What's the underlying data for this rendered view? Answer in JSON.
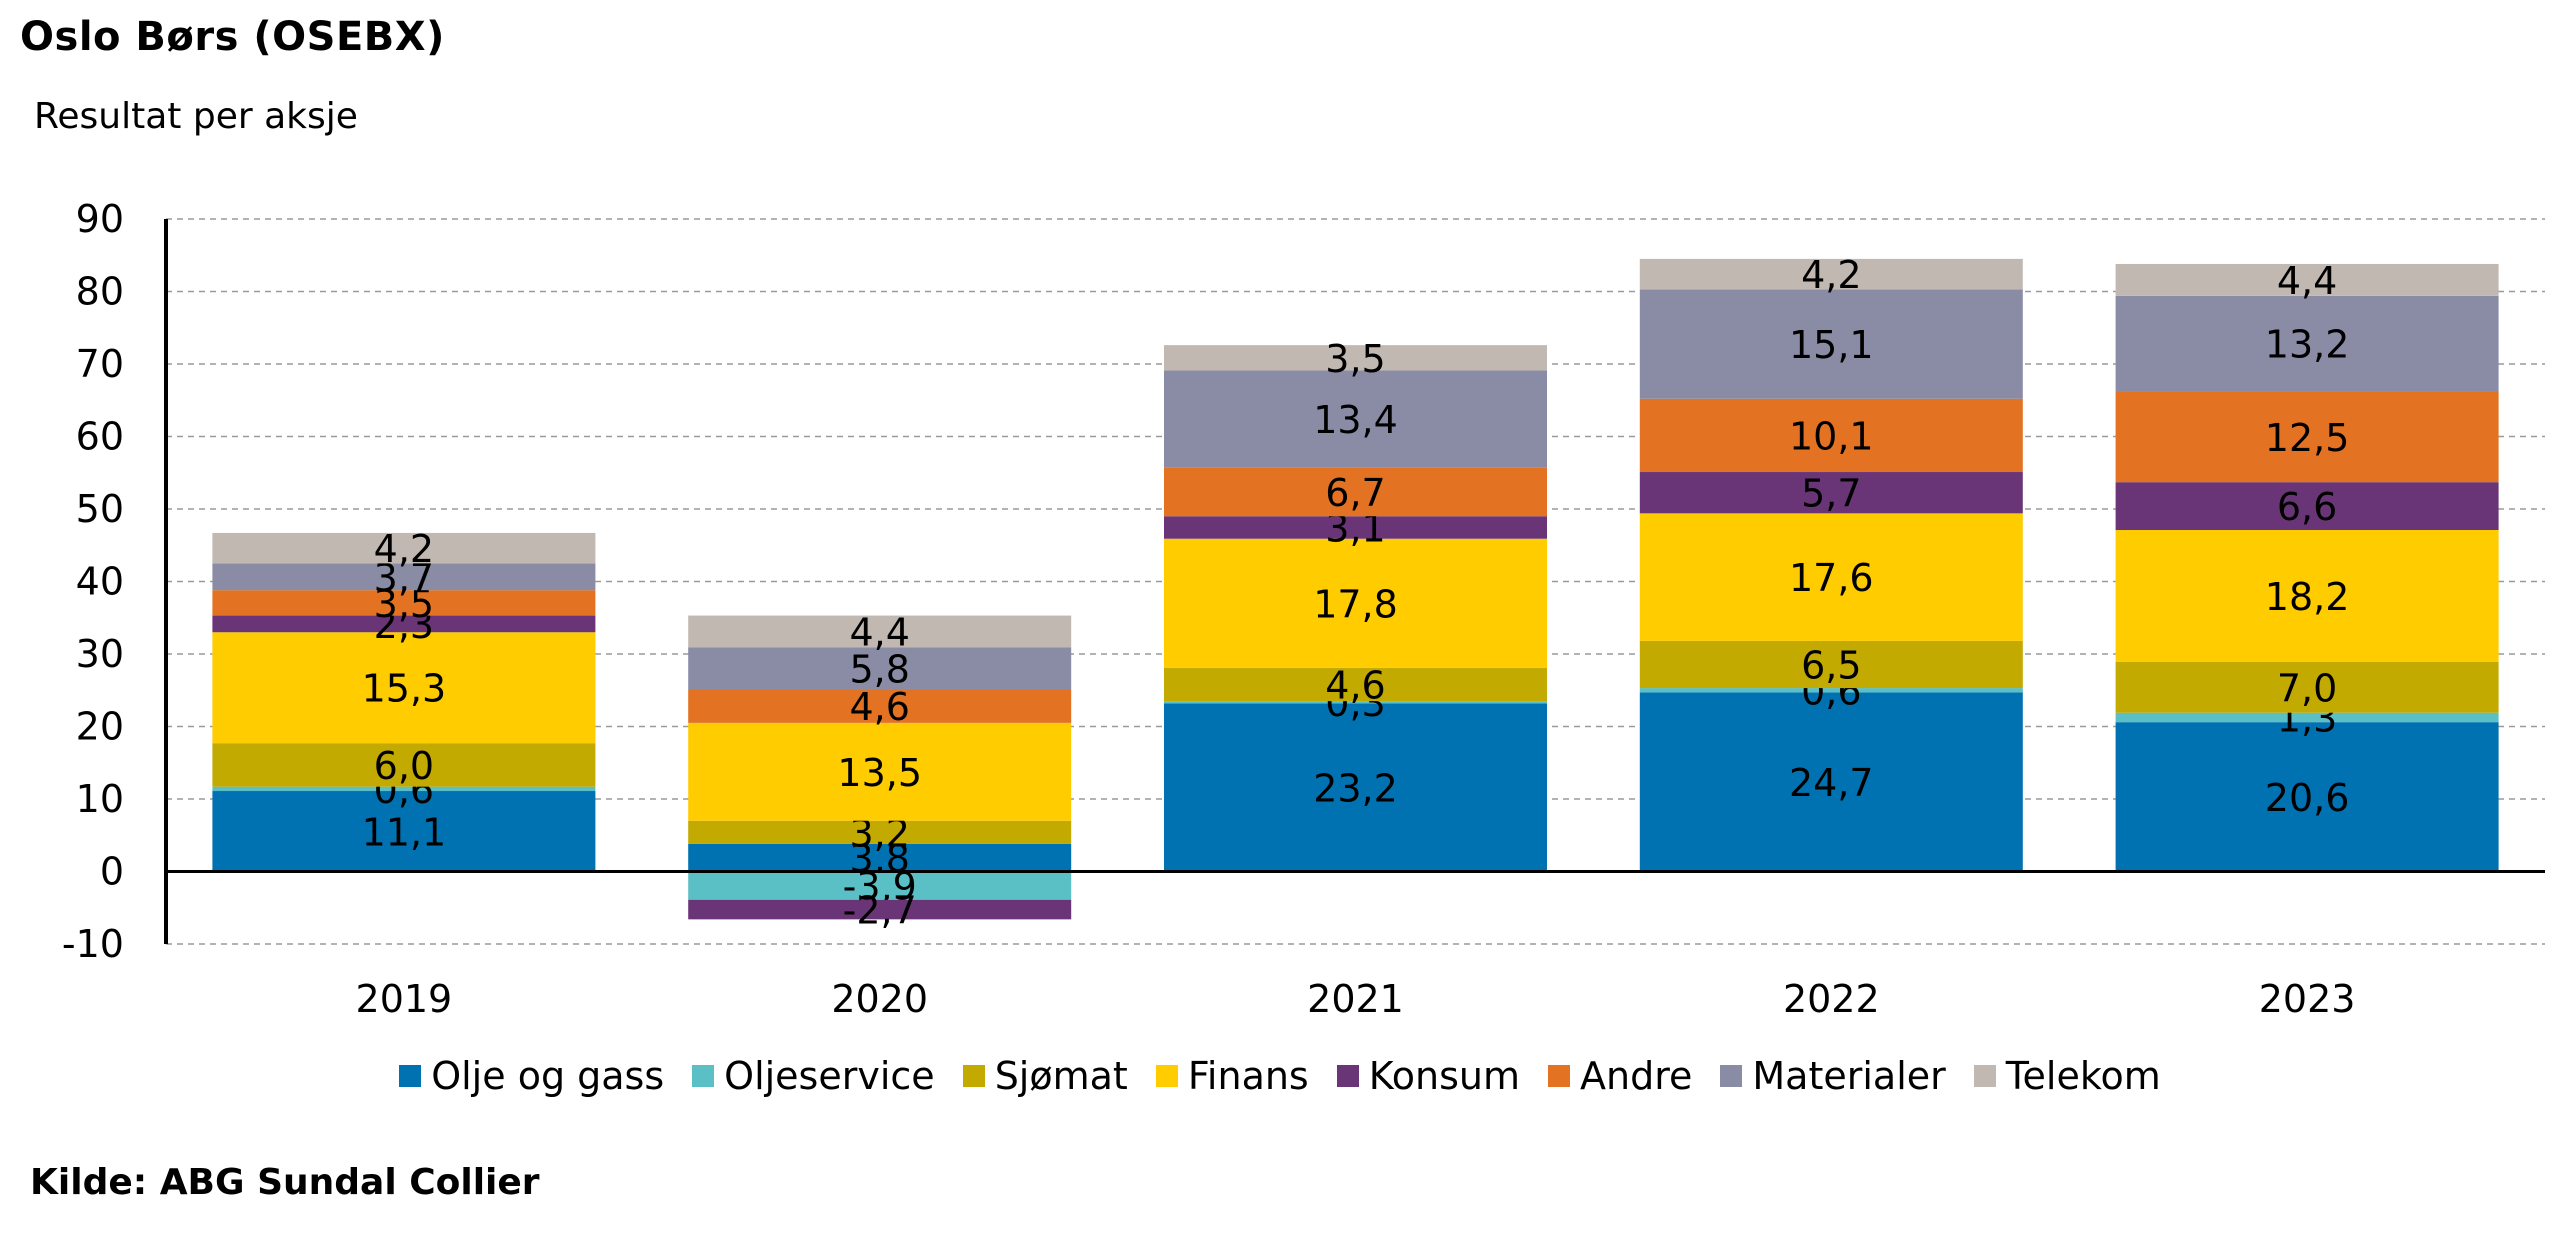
{
  "title": "Oslo Børs (OSEBX)",
  "subtitle": "Resultat per aksje",
  "source": "Kilde: ABG Sundal Collier",
  "chart_data": {
    "type": "bar",
    "stacked": true,
    "categories": [
      "2019",
      "2020",
      "2021",
      "2022",
      "2023"
    ],
    "ylim": [
      -10,
      90
    ],
    "yticks": [
      -10,
      0,
      10,
      20,
      30,
      40,
      50,
      60,
      70,
      80,
      90
    ],
    "grid": true,
    "legend_position": "bottom",
    "series": [
      {
        "name": "Olje og gass",
        "color": "#0072b2",
        "values": [
          11.1,
          3.8,
          23.2,
          24.7,
          20.6
        ],
        "labels": [
          "11,1",
          "3,8",
          "23,2",
          "24,7",
          "20,6"
        ]
      },
      {
        "name": "Oljeservice",
        "color": "#5bc0c6",
        "values": [
          0.6,
          -3.9,
          0.3,
          0.6,
          1.3
        ],
        "labels": [
          "0,6",
          "-3,9",
          "0,3",
          "0,6",
          "1,3"
        ]
      },
      {
        "name": "Sjømat",
        "color": "#c3aa00",
        "values": [
          6.0,
          3.2,
          4.6,
          6.5,
          7.0
        ],
        "labels": [
          "6,0",
          "3,2",
          "4,6",
          "6,5",
          "7,0"
        ]
      },
      {
        "name": "Finans",
        "color": "#ffcc00",
        "values": [
          15.3,
          13.5,
          17.8,
          17.6,
          18.2
        ],
        "labels": [
          "15,3",
          "13,5",
          "17,8",
          "17,6",
          "18,2"
        ]
      },
      {
        "name": "Konsum",
        "color": "#6a3576",
        "values": [
          2.3,
          -2.7,
          3.1,
          5.7,
          6.6
        ],
        "labels": [
          "2,3",
          "-2,7",
          "3,1",
          "5,7",
          "6,6"
        ]
      },
      {
        "name": "Andre",
        "color": "#e37222",
        "values": [
          3.5,
          4.6,
          6.7,
          10.1,
          12.5
        ],
        "labels": [
          "3,5",
          "4,6",
          "6,7",
          "10,1",
          "12,5"
        ]
      },
      {
        "name": "Materialer",
        "color": "#8a8ca6",
        "values": [
          3.7,
          5.8,
          13.4,
          15.1,
          13.2
        ],
        "labels": [
          "3,7",
          "5,8",
          "13,4",
          "15,1",
          "13,2"
        ]
      },
      {
        "name": "Telekom",
        "color": "#c2b8b2",
        "values": [
          4.2,
          4.4,
          3.5,
          4.2,
          4.4
        ],
        "labels": [
          "4,2",
          "4,4",
          "3,5",
          "4,2",
          "4,4"
        ]
      }
    ]
  }
}
